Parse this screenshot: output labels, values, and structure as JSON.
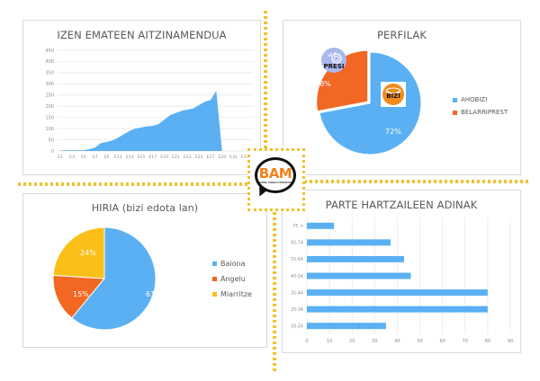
{
  "logo": {
    "text": "BAM",
    "subtitle": "BAIONA ANGELU MIARRITZE",
    "colors": {
      "text": "#f0821e",
      "outline": "#111111",
      "frame": "#f2c12e"
    }
  },
  "dividers": {
    "color": "#f2c12e",
    "style": "dotted"
  },
  "cards": {
    "registrations": {
      "title": "IZEN EMATEEN AITZINAMENDUA"
    },
    "profiles": {
      "title": "PERFILAK",
      "badges": {
        "presi": "PRESI",
        "bizi": "BIZI"
      },
      "legend": [
        {
          "label": "AHOBIZI",
          "color": "#5ab0f2"
        },
        {
          "label": "BELARRIPREST",
          "color": "#f26722"
        }
      ],
      "labels": {
        "ahobizi": "72%",
        "belarriprest": "28%"
      }
    },
    "city": {
      "title": "HIRIA (bizi edota lan)",
      "legend": [
        {
          "label": "Baiona",
          "color": "#5ab0f2"
        },
        {
          "label": "Angelu",
          "color": "#f26722"
        },
        {
          "label": "Miarritze",
          "color": "#fbbf1a"
        }
      ],
      "labels": {
        "baiona": "61%",
        "angelu": "15%",
        "miarritze": "24%"
      }
    },
    "ages": {
      "title": "PARTE HARTZAILEEN ADINAK"
    }
  },
  "chart_data": [
    {
      "type": "area",
      "title": "IZEN EMATEEN AITZINAMENDUA",
      "xlabel": "",
      "ylabel": "",
      "ylim": [
        0,
        450
      ],
      "yticks": [
        0,
        50,
        100,
        150,
        200,
        250,
        300,
        350,
        400,
        450
      ],
      "grid": true,
      "legend": "none",
      "color": "#5ab0f2",
      "xtick_labels": [
        "E1",
        "E3",
        "E5",
        "E7",
        "E9",
        "E11",
        "E13",
        "E15",
        "E17",
        "E19",
        "E21",
        "E23",
        "E25",
        "E27",
        "E29",
        "E31",
        "E33"
      ],
      "x": [
        "E1",
        "E2",
        "E3",
        "E4",
        "E5",
        "E6",
        "E7",
        "E8",
        "E9",
        "E10",
        "E11",
        "E12",
        "E13",
        "E14",
        "E15",
        "E16",
        "E17",
        "E18",
        "E19",
        "E20",
        "E21",
        "E22",
        "E23",
        "E24",
        "E25",
        "E26",
        "E27",
        "E28",
        "E29",
        "E30",
        "E31",
        "E32",
        "E33",
        "E34"
      ],
      "values": [
        2,
        3,
        3,
        3,
        3,
        8,
        15,
        35,
        40,
        47,
        60,
        75,
        90,
        100,
        105,
        110,
        112,
        120,
        140,
        160,
        170,
        180,
        185,
        190,
        205,
        220,
        228,
        268,
        0,
        0,
        0,
        0,
        0,
        0
      ]
    },
    {
      "type": "pie",
      "title": "PERFILAK",
      "categories": [
        "AHOBIZI",
        "BELARRIPREST"
      ],
      "values": [
        72,
        28
      ],
      "unit": "%",
      "colors": [
        "#5ab0f2",
        "#f26722"
      ],
      "legend": "right"
    },
    {
      "type": "pie",
      "title": "HIRIA (bizi edota lan)",
      "categories": [
        "Baiona",
        "Angelu",
        "Miarritze"
      ],
      "values": [
        61,
        15,
        24
      ],
      "unit": "%",
      "colors": [
        "#5ab0f2",
        "#f26722",
        "#fbbf1a"
      ],
      "legend": "right"
    },
    {
      "type": "bar",
      "orientation": "horizontal",
      "title": "PARTE HARTZAILEEN ADINAK",
      "categories": [
        "75 +",
        "65-74",
        "55-64",
        "45-54",
        "35-44",
        "25-34",
        "16-24"
      ],
      "values": [
        12,
        37,
        43,
        46,
        80,
        80,
        35
      ],
      "xlim": [
        0,
        90
      ],
      "xticks": [
        0,
        10,
        20,
        30,
        40,
        50,
        60,
        70,
        80,
        90
      ],
      "grid": true,
      "legend": "none",
      "color": "#5ab0f2"
    }
  ]
}
